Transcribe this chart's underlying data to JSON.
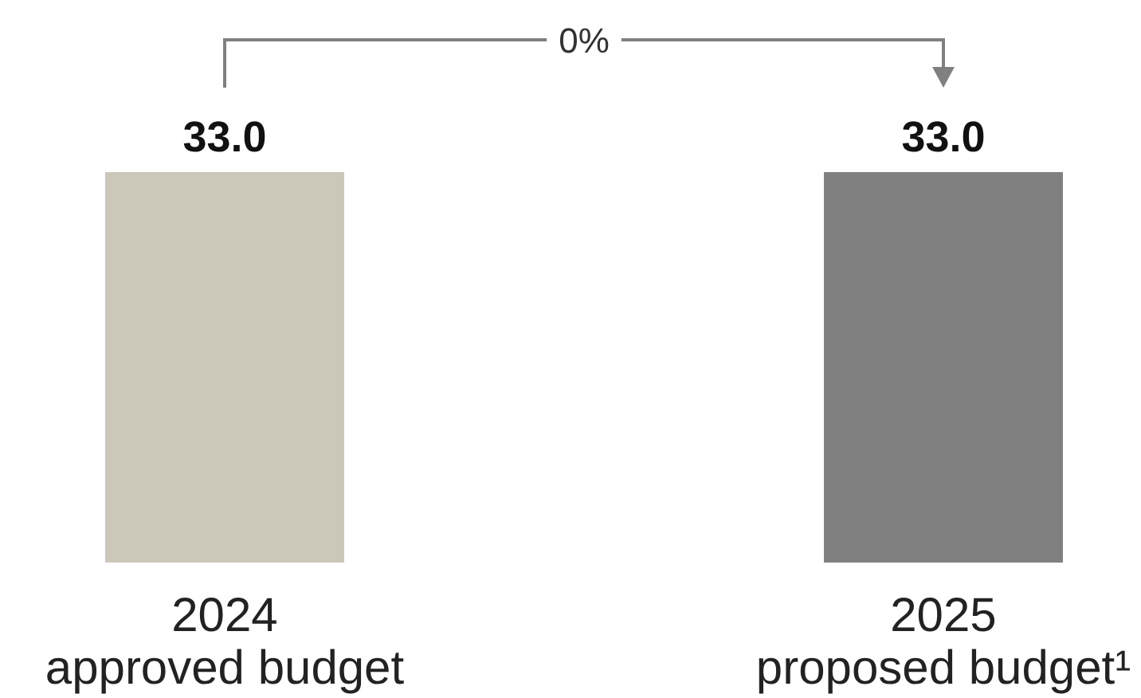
{
  "chart_data": {
    "type": "bar",
    "categories": [
      "2024\napproved budget",
      "2025\nproposed budget¹"
    ],
    "values": [
      33.0,
      33.0
    ],
    "colors": [
      "#cbc8ba",
      "#808080"
    ],
    "value_labels": [
      "33.0",
      "33.0"
    ],
    "annotations": [
      "0%"
    ]
  }
}
